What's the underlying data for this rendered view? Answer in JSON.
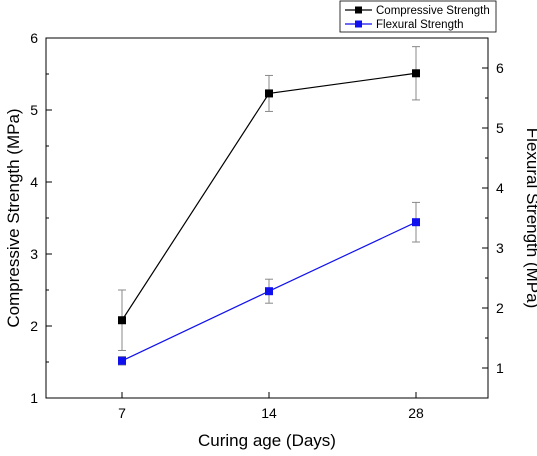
{
  "chart_data": {
    "type": "line",
    "x": [
      7,
      14,
      28
    ],
    "x_tick_labels": [
      "7",
      "14",
      "28"
    ],
    "xlabel": "Curing age (Days)",
    "ylabel": "Compressive Strength (MPa)",
    "y2label": "Flexural Strength (MPa)",
    "ylim": [
      1,
      6
    ],
    "y2lim": [
      0.5,
      6.5
    ],
    "y_ticks": [
      1,
      2,
      3,
      4,
      5,
      6
    ],
    "y2_ticks": [
      1,
      2,
      3,
      4,
      5,
      6
    ],
    "legend_position": "top-right",
    "grid": false,
    "series": [
      {
        "name": "Compressive Strength",
        "axis": "left",
        "color": "#000000",
        "values": [
          2.08,
          5.23,
          5.51
        ],
        "errors": [
          0.42,
          0.25,
          0.37
        ]
      },
      {
        "name": "Flexural Strength",
        "axis": "right",
        "color": "#1010ee",
        "values": [
          1.12,
          2.28,
          3.43
        ],
        "errors": [
          0.07,
          0.2,
          0.33
        ]
      }
    ]
  }
}
